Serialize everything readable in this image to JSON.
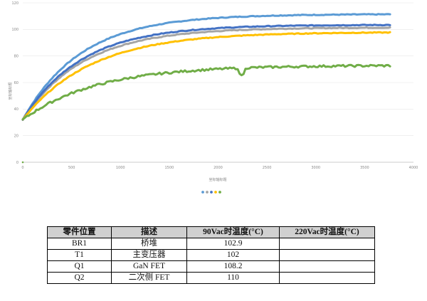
{
  "chart_data": {
    "type": "line",
    "title": "",
    "xlabel": "坐标轴标题",
    "ylabel": "坐标轴标题",
    "xlim": [
      0,
      4000
    ],
    "ylim": [
      0,
      120
    ],
    "x_ticks": [
      0,
      500,
      1000,
      1500,
      2000,
      2500,
      3000,
      3500,
      4000
    ],
    "y_ticks": [
      0,
      20,
      40,
      60,
      80,
      100,
      120
    ],
    "grid": "horizontal",
    "legend": "bottom",
    "series": [
      {
        "color": "#5b9bd5",
        "start": 32,
        "end": 111.5,
        "tau": 600
      },
      {
        "color": "#a5a5a5",
        "start": 32,
        "end": 101.5,
        "tau": 620
      },
      {
        "color": "#4472c4",
        "start": 32,
        "end": 103.5,
        "tau": 600
      },
      {
        "color": "#ffc000",
        "start": 32,
        "end": 98,
        "tau": 700
      },
      {
        "color": "#70ad47",
        "start": 32,
        "end": 73,
        "tau": 750
      }
    ]
  },
  "table": {
    "headers": [
      "零件位置",
      "描述",
      "90Vac时温度(°C)",
      "220Vac时温度(°C)"
    ],
    "rows": [
      [
        "BR1",
        "桥堆",
        "102.9",
        ""
      ],
      [
        "T1",
        "主变压器",
        "102",
        ""
      ],
      [
        "Q1",
        "GaN FET",
        "108.2",
        ""
      ],
      [
        "Q2",
        "二次侧 FET",
        "110",
        ""
      ]
    ]
  }
}
